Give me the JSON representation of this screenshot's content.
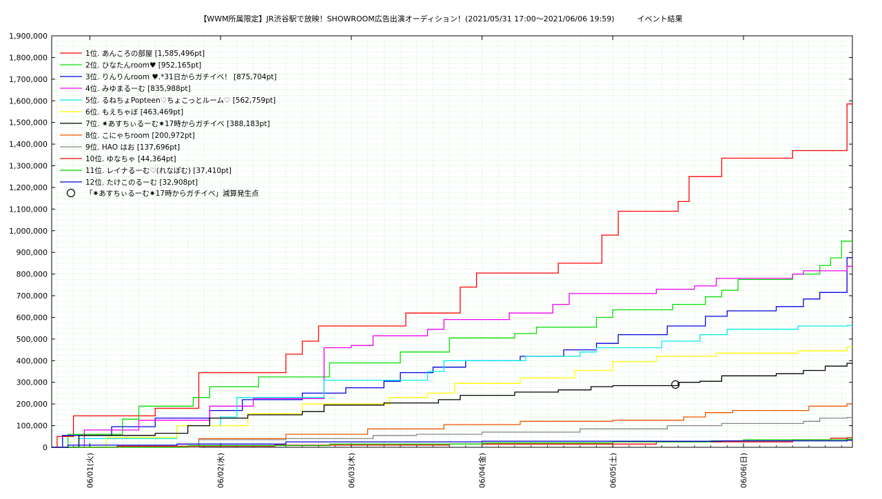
{
  "chart_data": {
    "type": "line",
    "title": "【WWM所属限定】JR渋谷駅で放映！SHOWROOM広告出演オーディション！(2021/05/31 17:00〜2021/06/06 19:59)　　　イベント結果",
    "xlabel": "",
    "ylabel": "",
    "ylim": [
      0,
      1900000
    ],
    "xlim": [
      "2021-05-31 17:00",
      "2021-06-06 19:59"
    ],
    "grid": true,
    "legend_position": "top-left",
    "y_ticks": [
      "0",
      "100,000",
      "200,000",
      "300,000",
      "400,000",
      "500,000",
      "600,000",
      "700,000",
      "800,000",
      "900,000",
      "1,000,000",
      "1,100,000",
      "1,200,000",
      "1,300,000",
      "1,400,000",
      "1,500,000",
      "1,600,000",
      "1,700,000",
      "1,800,000",
      "1,900,000"
    ],
    "x_ticks": [
      {
        "t": "2021-06-01 00:00",
        "label": "06/01(火)"
      },
      {
        "t": "2021-06-02 00:00",
        "label": "06/02(水)"
      },
      {
        "t": "2021-06-03 00:00",
        "label": "06/03(木)"
      },
      {
        "t": "2021-06-04 00:00",
        "label": "06/04(金)"
      },
      {
        "t": "2021-06-05 00:00",
        "label": "06/05(土)"
      },
      {
        "t": "2021-06-06 00:00",
        "label": "06/06(日)"
      }
    ],
    "series": [
      {
        "name": "1位. あんころの部屋 [1,585,496pt]",
        "color": "#ff0000",
        "points": [
          [
            "05/31 17:00",
            0
          ],
          [
            "05/31 18:00",
            50000
          ],
          [
            "05/31 21:00",
            145000
          ],
          [
            "06/01 12:00",
            180000
          ],
          [
            "06/01 20:00",
            345000
          ],
          [
            "06/02 12:00",
            430000
          ],
          [
            "06/02 15:00",
            490000
          ],
          [
            "06/02 18:00",
            560000
          ],
          [
            "06/03 10:00",
            620000
          ],
          [
            "06/03 20:00",
            740000
          ],
          [
            "06/03 23:00",
            805000
          ],
          [
            "06/04 14:00",
            850000
          ],
          [
            "06/04 22:00",
            980000
          ],
          [
            "06/05 01:00",
            1090000
          ],
          [
            "06/05 12:00",
            1135000
          ],
          [
            "06/05 14:00",
            1250000
          ],
          [
            "06/05 20:00",
            1335000
          ],
          [
            "06/06 09:00",
            1370000
          ],
          [
            "06/06 19:00",
            1585496
          ]
        ]
      },
      {
        "name": "2位. ひなたんroom♥ [952,165pt]",
        "color": "#00dd00",
        "points": [
          [
            "05/31 17:00",
            0
          ],
          [
            "05/31 20:00",
            60000
          ],
          [
            "06/01 06:00",
            130000
          ],
          [
            "06/01 09:00",
            190000
          ],
          [
            "06/01 19:00",
            230000
          ],
          [
            "06/01 22:00",
            280000
          ],
          [
            "06/02 07:00",
            325000
          ],
          [
            "06/02 20:00",
            390000
          ],
          [
            "06/03 09:00",
            440000
          ],
          [
            "06/03 18:00",
            505000
          ],
          [
            "06/04 06:00",
            525000
          ],
          [
            "06/04 10:00",
            555000
          ],
          [
            "06/04 21:00",
            600000
          ],
          [
            "06/05 00:00",
            635000
          ],
          [
            "06/05 11:00",
            660000
          ],
          [
            "06/05 17:00",
            695000
          ],
          [
            "06/05 20:00",
            725000
          ],
          [
            "06/05 23:00",
            775000
          ],
          [
            "06/06 09:00",
            800000
          ],
          [
            "06/06 14:00",
            840000
          ],
          [
            "06/06 16:00",
            875000
          ],
          [
            "06/06 18:00",
            952165
          ]
        ]
      },
      {
        "name": "3位. りんりんroom ♥.*31日からガチイベ！ [875,704pt]",
        "color": "#0000dd",
        "points": [
          [
            "05/31 17:00",
            0
          ],
          [
            "05/31 19:00",
            55000
          ],
          [
            "06/01 04:00",
            95000
          ],
          [
            "06/01 12:00",
            135000
          ],
          [
            "06/01 22:00",
            170000
          ],
          [
            "06/02 04:00",
            220000
          ],
          [
            "06/02 15:00",
            250000
          ],
          [
            "06/02 23:00",
            275000
          ],
          [
            "06/03 06:00",
            305000
          ],
          [
            "06/03 09:00",
            345000
          ],
          [
            "06/03 15:00",
            370000
          ],
          [
            "06/03 21:00",
            400000
          ],
          [
            "06/04 07:00",
            420000
          ],
          [
            "06/04 15:00",
            450000
          ],
          [
            "06/04 21:00",
            480000
          ],
          [
            "06/05 01:00",
            520000
          ],
          [
            "06/05 10:00",
            560000
          ],
          [
            "06/05 17:00",
            605000
          ],
          [
            "06/05 21:00",
            630000
          ],
          [
            "06/06 06:00",
            650000
          ],
          [
            "06/06 11:00",
            685000
          ],
          [
            "06/06 14:00",
            715000
          ],
          [
            "06/06 19:00",
            875704
          ]
        ]
      },
      {
        "name": "4位. みゆまるーむ [835,988pt]",
        "color": "#ee00ee",
        "points": [
          [
            "05/31 17:00",
            0
          ],
          [
            "05/31 23:00",
            80000
          ],
          [
            "06/01 09:00",
            125000
          ],
          [
            "06/01 22:00",
            190000
          ],
          [
            "06/02 06:00",
            225000
          ],
          [
            "06/02 19:00",
            460000
          ],
          [
            "06/03 00:00",
            470000
          ],
          [
            "06/03 04:00",
            515000
          ],
          [
            "06/03 14:00",
            545000
          ],
          [
            "06/03 17:00",
            590000
          ],
          [
            "06/04 05:00",
            620000
          ],
          [
            "06/04 13:00",
            660000
          ],
          [
            "06/04 16:00",
            710000
          ],
          [
            "06/05 08:00",
            730000
          ],
          [
            "06/05 15:00",
            745000
          ],
          [
            "06/05 19:00",
            780000
          ],
          [
            "06/06 09:00",
            800000
          ],
          [
            "06/06 11:00",
            815000
          ],
          [
            "06/06 19:00",
            835988
          ]
        ]
      },
      {
        "name": "5位. るねちょPopteen♡ちょこっとルーム♡ [562,759pt]",
        "color": "#00eeee",
        "points": [
          [
            "05/31 17:00",
            0
          ],
          [
            "05/31 22:00",
            40000
          ],
          [
            "06/01 16:00",
            100000
          ],
          [
            "06/02 00:00",
            140000
          ],
          [
            "06/02 03:00",
            230000
          ],
          [
            "06/02 19:00",
            310000
          ],
          [
            "06/03 05:00",
            310000
          ],
          [
            "06/03 14:00",
            350000
          ],
          [
            "06/03 17:00",
            400000
          ],
          [
            "06/04 08:00",
            420000
          ],
          [
            "06/04 18:00",
            440000
          ],
          [
            "06/04 21:00",
            460000
          ],
          [
            "06/05 09:00",
            490000
          ],
          [
            "06/05 16:00",
            520000
          ],
          [
            "06/05 21:00",
            545000
          ],
          [
            "06/06 10:00",
            560000
          ],
          [
            "06/06 19:00",
            562759
          ]
        ]
      },
      {
        "name": "6位. もえちゃぼ [463,469pt]",
        "color": "#ffff00",
        "points": [
          [
            "05/31 17:00",
            0
          ],
          [
            "06/01 03:00",
            45000
          ],
          [
            "06/01 16:00",
            100000
          ],
          [
            "06/02 05:00",
            155000
          ],
          [
            "06/02 15:00",
            200000
          ],
          [
            "06/03 07:00",
            230000
          ],
          [
            "06/03 14:00",
            250000
          ],
          [
            "06/03 19:00",
            295000
          ],
          [
            "06/04 07:00",
            320000
          ],
          [
            "06/04 17:00",
            355000
          ],
          [
            "06/05 00:00",
            395000
          ],
          [
            "06/05 08:00",
            420000
          ],
          [
            "06/05 19:00",
            435000
          ],
          [
            "06/06 10:00",
            445000
          ],
          [
            "06/06 19:00",
            463469
          ]
        ]
      },
      {
        "name": "7位. ✷あすちぃるーむ✷17時からガチイベ [388,183pt]",
        "color": "#000000",
        "points": [
          [
            "05/31 17:00",
            0
          ],
          [
            "05/31 22:00",
            55000
          ],
          [
            "06/01 12:00",
            65000
          ],
          [
            "06/01 18:00",
            100000
          ],
          [
            "06/01 22:00",
            135000
          ],
          [
            "06/02 05:00",
            150000
          ],
          [
            "06/02 15:00",
            165000
          ],
          [
            "06/02 19:00",
            195000
          ],
          [
            "06/03 06:00",
            205000
          ],
          [
            "06/03 16:00",
            220000
          ],
          [
            "06/03 20:00",
            240000
          ],
          [
            "06/04 06:00",
            255000
          ],
          [
            "06/04 14:00",
            265000
          ],
          [
            "06/04 20:00",
            280000
          ],
          [
            "06/05 00:00",
            285000
          ],
          [
            "06/05 12:00",
            300000
          ],
          [
            "06/05 16:00",
            305000
          ],
          [
            "06/05 20:00",
            330000
          ],
          [
            "06/06 06:00",
            340000
          ],
          [
            "06/06 11:00",
            355000
          ],
          [
            "06/06 15:00",
            375000
          ],
          [
            "06/06 19:00",
            388183
          ]
        ]
      },
      {
        "name": "8位. こにゃちroom [200,972pt]",
        "color": "#ee5500",
        "points": [
          [
            "05/31 17:00",
            0
          ],
          [
            "06/01 20:00",
            40000
          ],
          [
            "06/02 12:00",
            60000
          ],
          [
            "06/03 03:00",
            85000
          ],
          [
            "06/03 17:00",
            105000
          ],
          [
            "06/04 07:00",
            120000
          ],
          [
            "06/05 00:00",
            125000
          ],
          [
            "06/05 13:00",
            140000
          ],
          [
            "06/05 17:00",
            160000
          ],
          [
            "06/05 22:00",
            170000
          ],
          [
            "06/06 12:00",
            190000
          ],
          [
            "06/06 19:00",
            200972
          ]
        ]
      },
      {
        "name": "9位. HAO はお [137,696pt]",
        "color": "#888888",
        "points": [
          [
            "05/31 17:00",
            0
          ],
          [
            "06/01 20:00",
            35000
          ],
          [
            "06/02 12:00",
            40000
          ],
          [
            "06/03 04:00",
            55000
          ],
          [
            "06/03 12:00",
            60000
          ],
          [
            "06/04 00:00",
            70000
          ],
          [
            "06/04 18:00",
            85000
          ],
          [
            "06/05 10:00",
            100000
          ],
          [
            "06/05 20:00",
            110000
          ],
          [
            "06/06 11:00",
            120000
          ],
          [
            "06/06 14:00",
            135000
          ],
          [
            "06/06 19:00",
            137696
          ]
        ]
      },
      {
        "name": "10位. ゆなちゃ [44,364pt]",
        "color": "#ee0000",
        "points": [
          [
            "05/31 17:00",
            0
          ],
          [
            "06/01 05:00",
            5000
          ],
          [
            "06/02 10:00",
            10000
          ],
          [
            "06/03 18:00",
            15000
          ],
          [
            "06/05 08:00",
            25000
          ],
          [
            "06/06 09:00",
            35000
          ],
          [
            "06/06 16:00",
            42000
          ],
          [
            "06/06 19:00",
            44364
          ]
        ]
      },
      {
        "name": "11位. レイナるーむ♡(れなぽむ) [37,410pt]",
        "color": "#00cc00",
        "points": [
          [
            "05/31 17:00",
            0
          ],
          [
            "06/01 18:00",
            8000
          ],
          [
            "06/02 20:00",
            15000
          ],
          [
            "06/04 00:00",
            20000
          ],
          [
            "06/05 00:00",
            25000
          ],
          [
            "06/05 18:00",
            30000
          ],
          [
            "06/06 00:00",
            35000
          ],
          [
            "06/06 19:00",
            37410
          ]
        ]
      },
      {
        "name": "12位. たけこのるーむ [32,908pt]",
        "color": "#0000cc",
        "points": [
          [
            "05/31 17:00",
            0
          ],
          [
            "05/31 20:00",
            10000
          ],
          [
            "06/01 16:00",
            15000
          ],
          [
            "06/02 12:00",
            25000
          ],
          [
            "06/04 00:00",
            28000
          ],
          [
            "06/05 20:00",
            30000
          ],
          [
            "06/06 19:00",
            32908
          ]
        ]
      }
    ],
    "marker_legend": "「✷あすちぃるーむ✷17時からガチイベ」減算発生点",
    "markers": [
      {
        "t": "06/05 11:30",
        "y": 290000
      }
    ]
  }
}
